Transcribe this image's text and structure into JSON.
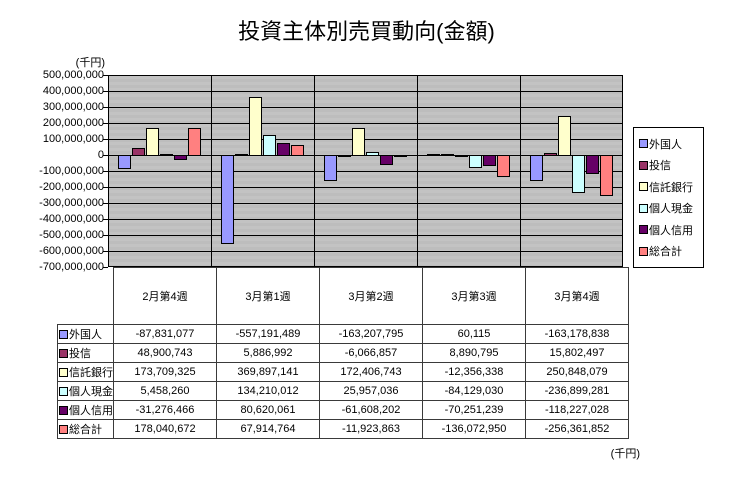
{
  "title": "投資主体別売買動向(金額)",
  "unit_label_top": "(千円)",
  "unit_label_bottom": "(千円)",
  "chart_data": {
    "type": "bar",
    "title": "投資主体別売買動向(金額)",
    "unit": "千円",
    "categories": [
      "2月第4週",
      "3月第1週",
      "3月第2週",
      "3月第3週",
      "3月第4週"
    ],
    "series": [
      {
        "name": "外国人",
        "color": "#9999FF",
        "values": [
          -87831077,
          -557191489,
          -163207795,
          60115,
          -163178838
        ]
      },
      {
        "name": "投信",
        "color": "#993366",
        "values": [
          48900743,
          5886992,
          -6066857,
          8890795,
          15802497
        ]
      },
      {
        "name": "信託銀行",
        "color": "#FFFFCC",
        "values": [
          173709325,
          369897141,
          172406743,
          -12356338,
          250848079
        ]
      },
      {
        "name": "個人現金",
        "color": "#CCFFFF",
        "values": [
          5458260,
          134210012,
          25957036,
          -84129030,
          -236899281
        ]
      },
      {
        "name": "個人信用",
        "color": "#660066",
        "values": [
          -31276466,
          80620061,
          -61608202,
          -70251239,
          -118227028
        ]
      },
      {
        "name": "総合計",
        "color": "#FF8080",
        "values": [
          178040672,
          67914764,
          -11923863,
          -136072950,
          -256361852
        ]
      }
    ],
    "ylim": [
      -700000000,
      500000000
    ],
    "ytick_step": 100000000,
    "grid": true,
    "legend_position": "right",
    "plot_bg": "#C0C0C0"
  },
  "table": {
    "row_labels": [
      "外国人",
      "投信",
      "信託銀行",
      "個人現金",
      "個人信用",
      "総合計"
    ],
    "rows": [
      [
        "-87,831,077",
        "-557,191,489",
        "-163,207,795",
        "60,115",
        "-163,178,838"
      ],
      [
        "48,900,743",
        "5,886,992",
        "-6,066,857",
        "8,890,795",
        "15,802,497"
      ],
      [
        "173,709,325",
        "369,897,141",
        "172,406,743",
        "-12,356,338",
        "250,848,079"
      ],
      [
        "5,458,260",
        "134,210,012",
        "25,957,036",
        "-84,129,030",
        "-236,899,281"
      ],
      [
        "-31,276,466",
        "80,620,061",
        "-61,608,202",
        "-70,251,239",
        "-118,227,028"
      ],
      [
        "178,040,672",
        "67,914,764",
        "-11,923,863",
        "-136,072,950",
        "-256,361,852"
      ]
    ]
  }
}
